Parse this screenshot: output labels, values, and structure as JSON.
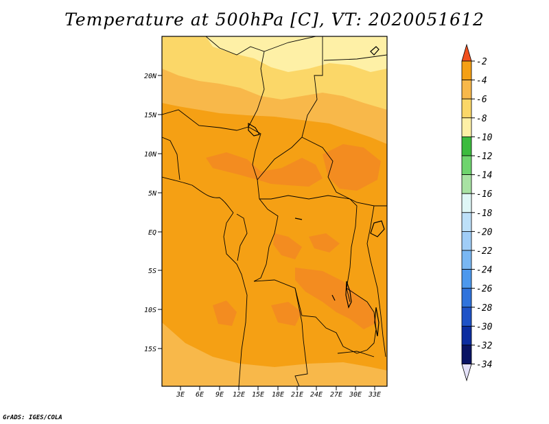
{
  "title": "Temperature at 500hPa [C], VT: 2020051612",
  "credit": "GrADS: IGES/COLA",
  "map": {
    "lat_ticks": [
      "20N",
      "15N",
      "10N",
      "5N",
      "EQ",
      "5S",
      "10S",
      "15S"
    ],
    "lon_ticks": [
      "3E",
      "6E",
      "9E",
      "12E",
      "15E",
      "18E",
      "21E",
      "24E",
      "27E",
      "30E",
      "33E"
    ]
  },
  "colorbar": {
    "labels": [
      "-2",
      "-4",
      "-6",
      "-8",
      "-10",
      "-12",
      "-14",
      "-16",
      "-18",
      "-20",
      "-22",
      "-24",
      "-26",
      "-28",
      "-30",
      "-32",
      "-34"
    ],
    "colors": [
      "#f0501e",
      "#f5a014",
      "#f8b84a",
      "#fbd768",
      "#fef0a6",
      "#3cbb3e",
      "#6fd46e",
      "#a8e2a3",
      "#dff7f7",
      "#bde0f9",
      "#a0cdf7",
      "#79b7f3",
      "#4c98ed",
      "#2f73dc",
      "#1e52c7",
      "#0c2da0",
      "#0a1464",
      "#e4e1f8"
    ],
    "top_arrow_color": "#f0501e",
    "bottom_arrow_color": "#e4e1f8"
  },
  "field_colors": {
    "warm_-4_to_-2": "#f38c20",
    "band_-6_to_-4": "#f5a014",
    "band_-8_to_-6": "#f8b84a",
    "band_-10_to_-8": "#fbd768",
    "band_-12_to_-10": "#fef0a6"
  }
}
